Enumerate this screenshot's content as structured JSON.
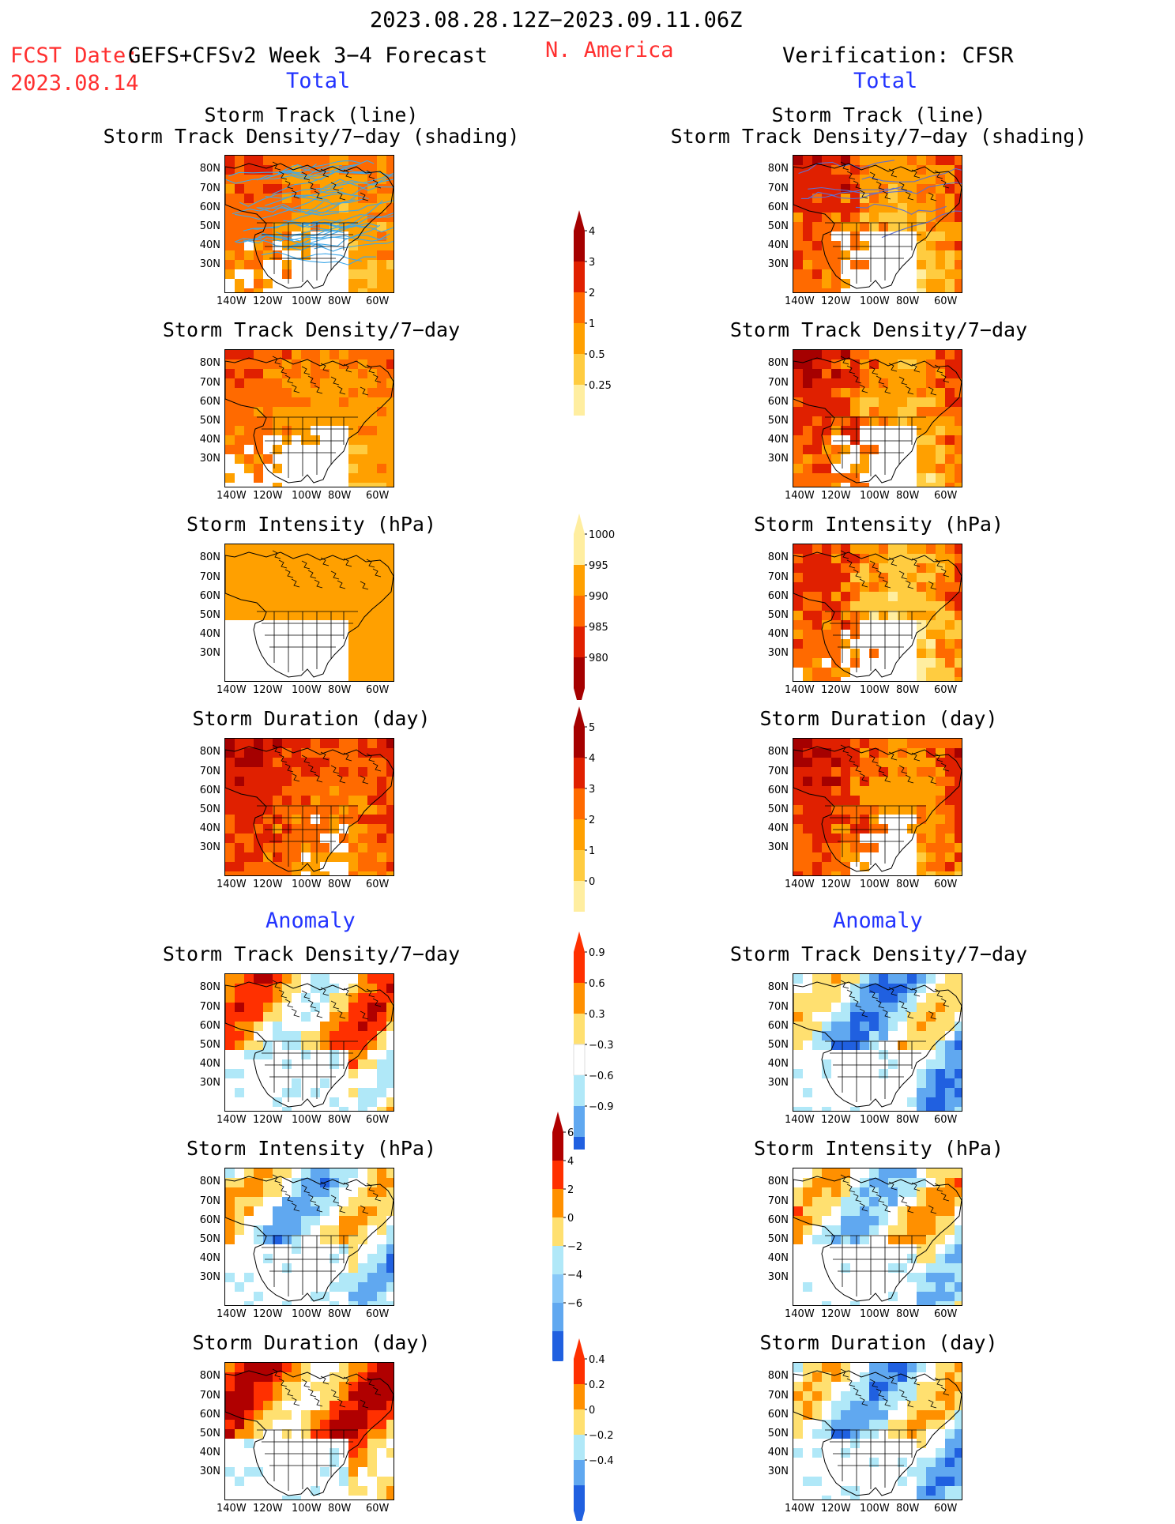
{
  "header": {
    "period": "2023.08.28.12Z−2023.09.11.06Z",
    "fcst_date_label": "FCST Date:",
    "fcst_date": "2023.08.14",
    "model": "GEFS+CFSv2 Week 3−4 Forecast",
    "region": "N. America",
    "verification": "Verification: CFSR",
    "left_section_total": "Total",
    "right_section_total": "Total",
    "left_section_anomaly": "Anomaly",
    "right_section_anomaly": "Anomaly"
  },
  "titles": {
    "track_line": "Storm Track (line)",
    "track_shading": "Storm Track Density/7−day (shading)",
    "density": "Storm Track Density/7−day",
    "intensity": "Storm Intensity (hPa)",
    "duration": "Storm Duration (day)"
  },
  "axes": {
    "lat_labels": [
      "80N",
      "70N",
      "60N",
      "50N",
      "40N",
      "30N"
    ],
    "lon_labels": [
      "140W",
      "120W",
      "100W",
      "80W",
      "60W"
    ]
  },
  "colorbars": {
    "density_total": {
      "labels": [
        "4",
        "3",
        "2",
        "1",
        "0.5",
        "0.25"
      ],
      "colors": [
        "#a50000",
        "#e02000",
        "#ff6a00",
        "#ffa000",
        "#ffcc40",
        "#ffeea0"
      ]
    },
    "intensity_total": {
      "labels": [
        "1000",
        "995",
        "990",
        "985",
        "980"
      ],
      "colors": [
        "#ffeea0",
        "#ffa000",
        "#ff6a00",
        "#e02000",
        "#a50000"
      ]
    },
    "duration_total": {
      "labels": [
        "5",
        "4",
        "3",
        "2",
        "1",
        "0"
      ],
      "colors": [
        "#a50000",
        "#e02000",
        "#ff6a00",
        "#ffa000",
        "#ffcc40",
        "#ffeea0"
      ]
    },
    "density_anom": {
      "labels": [
        "0.9",
        "0.6",
        "0.3",
        "−0.3",
        "−0.6",
        "−0.9"
      ],
      "colors": [
        "#ff3000",
        "#ff9000",
        "#ffe070",
        "#ffffff",
        "#b0e8f8",
        "#60a8f0",
        "#2060e0"
      ]
    },
    "intensity_anom": {
      "labels": [
        "6",
        "4",
        "2",
        "0",
        "−2",
        "−4",
        "−6"
      ],
      "colors": [
        "#b00000",
        "#ff3000",
        "#ff9000",
        "#ffe070",
        "#b0e8f8",
        "#88c8f8",
        "#60a8f0",
        "#2060e0"
      ]
    },
    "duration_anom": {
      "labels": [
        "0.4",
        "0.2",
        "0",
        "−0.2",
        "−0.4"
      ],
      "colors": [
        "#ff3000",
        "#ff9000",
        "#ffe070",
        "#b0e8f8",
        "#60a8f0",
        "#2060e0"
      ]
    }
  },
  "colors": {
    "track_line_forecast": "#40a8e8",
    "track_line_verif": "#6070d0"
  }
}
